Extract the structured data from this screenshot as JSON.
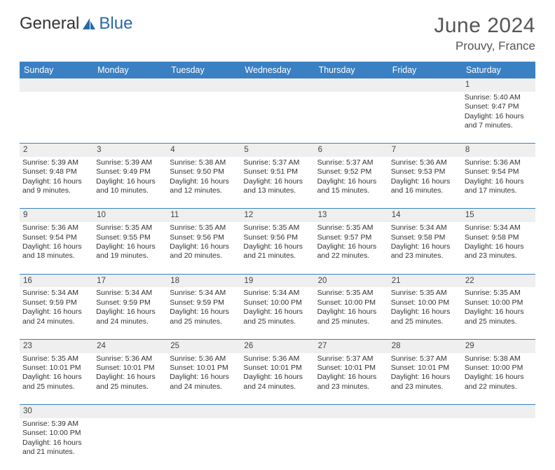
{
  "brand": {
    "general": "General",
    "blue": "Blue"
  },
  "colors": {
    "header_bg": "#3a80c3",
    "header_text": "#ffffff",
    "daynum_bg": "#efefef",
    "border": "#3a80c3",
    "title_color": "#555555",
    "body_text": "#333333"
  },
  "title": "June 2024",
  "location": "Prouvy, France",
  "weekdays": [
    "Sunday",
    "Monday",
    "Tuesday",
    "Wednesday",
    "Thursday",
    "Friday",
    "Saturday"
  ],
  "weeks": [
    {
      "nums": [
        "",
        "",
        "",
        "",
        "",
        "",
        "1"
      ],
      "cells": [
        null,
        null,
        null,
        null,
        null,
        null,
        {
          "sr": "Sunrise: 5:40 AM",
          "ss": "Sunset: 9:47 PM",
          "d1": "Daylight: 16 hours",
          "d2": "and 7 minutes."
        }
      ]
    },
    {
      "nums": [
        "2",
        "3",
        "4",
        "5",
        "6",
        "7",
        "8"
      ],
      "cells": [
        {
          "sr": "Sunrise: 5:39 AM",
          "ss": "Sunset: 9:48 PM",
          "d1": "Daylight: 16 hours",
          "d2": "and 9 minutes."
        },
        {
          "sr": "Sunrise: 5:39 AM",
          "ss": "Sunset: 9:49 PM",
          "d1": "Daylight: 16 hours",
          "d2": "and 10 minutes."
        },
        {
          "sr": "Sunrise: 5:38 AM",
          "ss": "Sunset: 9:50 PM",
          "d1": "Daylight: 16 hours",
          "d2": "and 12 minutes."
        },
        {
          "sr": "Sunrise: 5:37 AM",
          "ss": "Sunset: 9:51 PM",
          "d1": "Daylight: 16 hours",
          "d2": "and 13 minutes."
        },
        {
          "sr": "Sunrise: 5:37 AM",
          "ss": "Sunset: 9:52 PM",
          "d1": "Daylight: 16 hours",
          "d2": "and 15 minutes."
        },
        {
          "sr": "Sunrise: 5:36 AM",
          "ss": "Sunset: 9:53 PM",
          "d1": "Daylight: 16 hours",
          "d2": "and 16 minutes."
        },
        {
          "sr": "Sunrise: 5:36 AM",
          "ss": "Sunset: 9:54 PM",
          "d1": "Daylight: 16 hours",
          "d2": "and 17 minutes."
        }
      ]
    },
    {
      "nums": [
        "9",
        "10",
        "11",
        "12",
        "13",
        "14",
        "15"
      ],
      "cells": [
        {
          "sr": "Sunrise: 5:36 AM",
          "ss": "Sunset: 9:54 PM",
          "d1": "Daylight: 16 hours",
          "d2": "and 18 minutes."
        },
        {
          "sr": "Sunrise: 5:35 AM",
          "ss": "Sunset: 9:55 PM",
          "d1": "Daylight: 16 hours",
          "d2": "and 19 minutes."
        },
        {
          "sr": "Sunrise: 5:35 AM",
          "ss": "Sunset: 9:56 PM",
          "d1": "Daylight: 16 hours",
          "d2": "and 20 minutes."
        },
        {
          "sr": "Sunrise: 5:35 AM",
          "ss": "Sunset: 9:56 PM",
          "d1": "Daylight: 16 hours",
          "d2": "and 21 minutes."
        },
        {
          "sr": "Sunrise: 5:35 AM",
          "ss": "Sunset: 9:57 PM",
          "d1": "Daylight: 16 hours",
          "d2": "and 22 minutes."
        },
        {
          "sr": "Sunrise: 5:34 AM",
          "ss": "Sunset: 9:58 PM",
          "d1": "Daylight: 16 hours",
          "d2": "and 23 minutes."
        },
        {
          "sr": "Sunrise: 5:34 AM",
          "ss": "Sunset: 9:58 PM",
          "d1": "Daylight: 16 hours",
          "d2": "and 23 minutes."
        }
      ]
    },
    {
      "nums": [
        "16",
        "17",
        "18",
        "19",
        "20",
        "21",
        "22"
      ],
      "cells": [
        {
          "sr": "Sunrise: 5:34 AM",
          "ss": "Sunset: 9:59 PM",
          "d1": "Daylight: 16 hours",
          "d2": "and 24 minutes."
        },
        {
          "sr": "Sunrise: 5:34 AM",
          "ss": "Sunset: 9:59 PM",
          "d1": "Daylight: 16 hours",
          "d2": "and 24 minutes."
        },
        {
          "sr": "Sunrise: 5:34 AM",
          "ss": "Sunset: 9:59 PM",
          "d1": "Daylight: 16 hours",
          "d2": "and 25 minutes."
        },
        {
          "sr": "Sunrise: 5:34 AM",
          "ss": "Sunset: 10:00 PM",
          "d1": "Daylight: 16 hours",
          "d2": "and 25 minutes."
        },
        {
          "sr": "Sunrise: 5:35 AM",
          "ss": "Sunset: 10:00 PM",
          "d1": "Daylight: 16 hours",
          "d2": "and 25 minutes."
        },
        {
          "sr": "Sunrise: 5:35 AM",
          "ss": "Sunset: 10:00 PM",
          "d1": "Daylight: 16 hours",
          "d2": "and 25 minutes."
        },
        {
          "sr": "Sunrise: 5:35 AM",
          "ss": "Sunset: 10:00 PM",
          "d1": "Daylight: 16 hours",
          "d2": "and 25 minutes."
        }
      ]
    },
    {
      "nums": [
        "23",
        "24",
        "25",
        "26",
        "27",
        "28",
        "29"
      ],
      "cells": [
        {
          "sr": "Sunrise: 5:35 AM",
          "ss": "Sunset: 10:01 PM",
          "d1": "Daylight: 16 hours",
          "d2": "and 25 minutes."
        },
        {
          "sr": "Sunrise: 5:36 AM",
          "ss": "Sunset: 10:01 PM",
          "d1": "Daylight: 16 hours",
          "d2": "and 25 minutes."
        },
        {
          "sr": "Sunrise: 5:36 AM",
          "ss": "Sunset: 10:01 PM",
          "d1": "Daylight: 16 hours",
          "d2": "and 24 minutes."
        },
        {
          "sr": "Sunrise: 5:36 AM",
          "ss": "Sunset: 10:01 PM",
          "d1": "Daylight: 16 hours",
          "d2": "and 24 minutes."
        },
        {
          "sr": "Sunrise: 5:37 AM",
          "ss": "Sunset: 10:01 PM",
          "d1": "Daylight: 16 hours",
          "d2": "and 23 minutes."
        },
        {
          "sr": "Sunrise: 5:37 AM",
          "ss": "Sunset: 10:01 PM",
          "d1": "Daylight: 16 hours",
          "d2": "and 23 minutes."
        },
        {
          "sr": "Sunrise: 5:38 AM",
          "ss": "Sunset: 10:00 PM",
          "d1": "Daylight: 16 hours",
          "d2": "and 22 minutes."
        }
      ]
    },
    {
      "nums": [
        "30",
        "",
        "",
        "",
        "",
        "",
        ""
      ],
      "cells": [
        {
          "sr": "Sunrise: 5:39 AM",
          "ss": "Sunset: 10:00 PM",
          "d1": "Daylight: 16 hours",
          "d2": "and 21 minutes."
        },
        null,
        null,
        null,
        null,
        null,
        null
      ]
    }
  ]
}
